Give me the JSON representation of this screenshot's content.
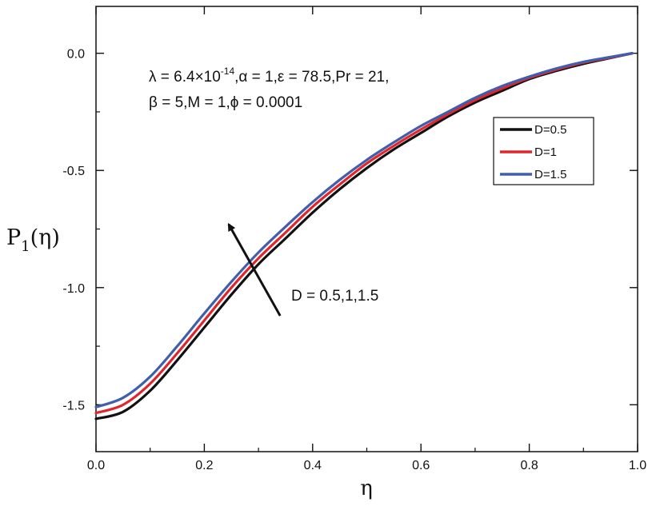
{
  "chart_data": {
    "type": "line",
    "xlabel": "η",
    "ylabel": {
      "main": "P",
      "sub": "1",
      "rest": "(η)"
    },
    "xlim": [
      0.0,
      1.0
    ],
    "ylim": [
      -1.7,
      0.2
    ],
    "x_ticks": [
      0.0,
      0.2,
      0.4,
      0.6,
      0.8,
      1.0
    ],
    "x_tick_labels": [
      "0.0",
      "0.2",
      "0.4",
      "0.6",
      "0.8",
      "1.0"
    ],
    "y_ticks": [
      -1.5,
      -1.0,
      -0.5,
      0.0
    ],
    "y_tick_labels": [
      "-1.5",
      "-1.0",
      "-0.5",
      "0.0"
    ],
    "grid": false,
    "legend_position": "right",
    "x": [
      0.0,
      0.05,
      0.1,
      0.15,
      0.2,
      0.25,
      0.3,
      0.35,
      0.4,
      0.45,
      0.5,
      0.55,
      0.6,
      0.65,
      0.7,
      0.75,
      0.8,
      0.85,
      0.9,
      0.95,
      0.99
    ],
    "series": [
      {
        "name": "D=0.5",
        "color": "#111111",
        "values": [
          -1.56,
          -1.53,
          -1.44,
          -1.31,
          -1.17,
          -1.03,
          -0.9,
          -0.79,
          -0.68,
          -0.58,
          -0.49,
          -0.41,
          -0.34,
          -0.27,
          -0.21,
          -0.16,
          -0.11,
          -0.075,
          -0.045,
          -0.02,
          0.0
        ]
      },
      {
        "name": "D=1",
        "color": "#e0262b",
        "values": [
          -1.535,
          -1.5,
          -1.41,
          -1.28,
          -1.14,
          -1.0,
          -0.875,
          -0.765,
          -0.655,
          -0.56,
          -0.47,
          -0.395,
          -0.325,
          -0.26,
          -0.2,
          -0.15,
          -0.105,
          -0.07,
          -0.04,
          -0.018,
          0.0
        ]
      },
      {
        "name": "D=1.5",
        "color": "#3f5fae",
        "values": [
          -1.51,
          -1.47,
          -1.38,
          -1.25,
          -1.11,
          -0.975,
          -0.85,
          -0.74,
          -0.635,
          -0.54,
          -0.455,
          -0.38,
          -0.31,
          -0.25,
          -0.19,
          -0.14,
          -0.1,
          -0.065,
          -0.037,
          -0.016,
          0.0
        ]
      }
    ],
    "annotations": {
      "params": {
        "line1": {
          "lambda_prefix": "λ = 6.4×10",
          "exponent": "-14",
          "rest": ",α = 1,ε = 78.5,Pr = 21,"
        },
        "line2": "β = 5,M = 1,ϕ = 0.0001"
      },
      "arrow_label": "D = 0.5,1,1.5",
      "arrow": {
        "from": [
          0.34,
          -1.12
        ],
        "to": [
          0.245,
          -0.73
        ]
      }
    }
  }
}
